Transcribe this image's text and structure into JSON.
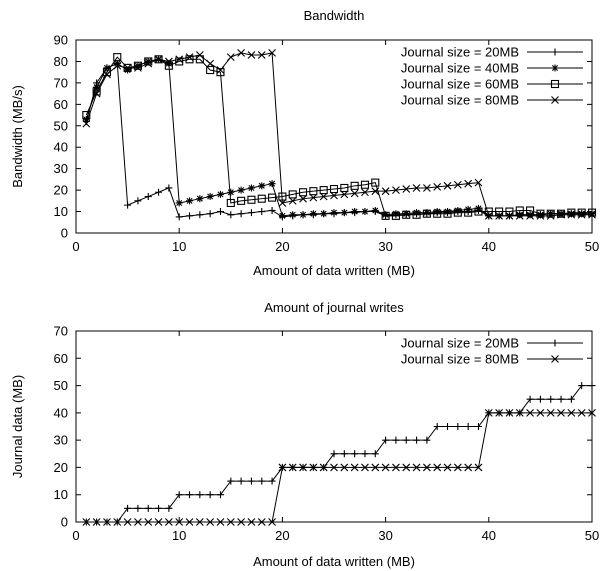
{
  "chart_data": [
    {
      "type": "line",
      "title": "Bandwidth",
      "xlabel": "Amount of data written (MB)",
      "ylabel": "Bandwidth (MB/s)",
      "xlim": [
        0,
        50
      ],
      "ylim": [
        0,
        90
      ],
      "xticks": [
        0,
        10,
        20,
        30,
        40,
        50
      ],
      "yticks": [
        0,
        10,
        20,
        30,
        40,
        50,
        60,
        70,
        80,
        90
      ],
      "legend_position": "top-right",
      "x": [
        1,
        2,
        3,
        4,
        5,
        6,
        7,
        8,
        9,
        10,
        11,
        12,
        13,
        14,
        15,
        16,
        17,
        18,
        19,
        20,
        21,
        22,
        23,
        24,
        25,
        26,
        27,
        28,
        29,
        30,
        31,
        32,
        33,
        34,
        35,
        36,
        37,
        38,
        39,
        40,
        41,
        42,
        43,
        44,
        45,
        46,
        47,
        48,
        49,
        50
      ],
      "series": [
        {
          "name": "Journal size = 20MB",
          "marker": "plus",
          "values": [
            52,
            70,
            77,
            79,
            13,
            15,
            17,
            19,
            21,
            7.5,
            8,
            8.5,
            9,
            10,
            8.5,
            9,
            9.5,
            10,
            10.5,
            7.5,
            8,
            8.5,
            8.5,
            9,
            9,
            9.5,
            9.5,
            10,
            10,
            8,
            8.5,
            8.5,
            9,
            9,
            9.5,
            9.5,
            10,
            10,
            10.5,
            8,
            8,
            8,
            8.5,
            8.5,
            8.5,
            9,
            9,
            9,
            9,
            9
          ]
        },
        {
          "name": "Journal size = 40MB",
          "marker": "star",
          "values": [
            53,
            68,
            77,
            79,
            76,
            78,
            80,
            81,
            79,
            14,
            15,
            16,
            17,
            18,
            19,
            20,
            21,
            22,
            23,
            8,
            8.5,
            8.5,
            9,
            9,
            9.5,
            9.5,
            10,
            10,
            10.5,
            8.5,
            9,
            9,
            9.5,
            9.5,
            10,
            10,
            10.5,
            11,
            11.5,
            8,
            8,
            8,
            8.5,
            8.5,
            8.5,
            9,
            9,
            9,
            9,
            9
          ]
        },
        {
          "name": "Journal size = 60MB",
          "marker": "square",
          "values": [
            55,
            66,
            75,
            82,
            77,
            78,
            80,
            81,
            78,
            80,
            81,
            81,
            76,
            75,
            14,
            15,
            15.5,
            16,
            16.5,
            17,
            18,
            19,
            19.5,
            20,
            20.5,
            21,
            22,
            22.5,
            23.5,
            8,
            8,
            8.5,
            8.5,
            9,
            9,
            9,
            9.5,
            9.5,
            10,
            10,
            10,
            10,
            10.5,
            10.5,
            9,
            9,
            9,
            9.5,
            9.5,
            9.5
          ]
        },
        {
          "name": "Journal size = 80MB",
          "marker": "x",
          "values": [
            51,
            65,
            74,
            78,
            77,
            77,
            79,
            81,
            80,
            81,
            82,
            83,
            79,
            76,
            82,
            84,
            83,
            83,
            84,
            14,
            15,
            16,
            16.5,
            17,
            17.5,
            18,
            18.5,
            19,
            19.5,
            19.5,
            20,
            20.5,
            21,
            21,
            21.5,
            22,
            22.5,
            23,
            23.5,
            8,
            8,
            8,
            8,
            8,
            8,
            8,
            8.5,
            8.5,
            8.5,
            8.5
          ]
        }
      ]
    },
    {
      "type": "line",
      "title": "Amount of journal writes",
      "xlabel": "Amount of data written (MB)",
      "ylabel": "Journal data (MB)",
      "xlim": [
        0,
        50
      ],
      "ylim": [
        0,
        70
      ],
      "xticks": [
        0,
        10,
        20,
        30,
        40,
        50
      ],
      "yticks": [
        0,
        10,
        20,
        30,
        40,
        50,
        60,
        70
      ],
      "legend_position": "top-right",
      "x": [
        1,
        2,
        3,
        4,
        5,
        6,
        7,
        8,
        9,
        10,
        11,
        12,
        13,
        14,
        15,
        16,
        17,
        18,
        19,
        20,
        21,
        22,
        23,
        24,
        25,
        26,
        27,
        28,
        29,
        30,
        31,
        32,
        33,
        34,
        35,
        36,
        37,
        38,
        39,
        40,
        41,
        42,
        43,
        44,
        45,
        46,
        47,
        48,
        49,
        50
      ],
      "series": [
        {
          "name": "Journal size = 20MB",
          "marker": "plus",
          "values": [
            0,
            0,
            0,
            0,
            5,
            5,
            5,
            5,
            5,
            10,
            10,
            10,
            10,
            10,
            15,
            15,
            15,
            15,
            15,
            20,
            20,
            20,
            20,
            20,
            25,
            25,
            25,
            25,
            25,
            30,
            30,
            30,
            30,
            30,
            35,
            35,
            35,
            35,
            35,
            40,
            40,
            40,
            40,
            45,
            45,
            45,
            45,
            45,
            50,
            50
          ]
        },
        {
          "name": "Journal size = 80MB",
          "marker": "x",
          "values": [
            0,
            0,
            0,
            0,
            0,
            0,
            0,
            0,
            0,
            0,
            0,
            0,
            0,
            0,
            0,
            0,
            0,
            0,
            0,
            20,
            20,
            20,
            20,
            20,
            20,
            20,
            20,
            20,
            20,
            20,
            20,
            20,
            20,
            20,
            20,
            20,
            20,
            20,
            20,
            40,
            40,
            40,
            40,
            40,
            40,
            40,
            40,
            40,
            40,
            40
          ]
        }
      ]
    }
  ]
}
